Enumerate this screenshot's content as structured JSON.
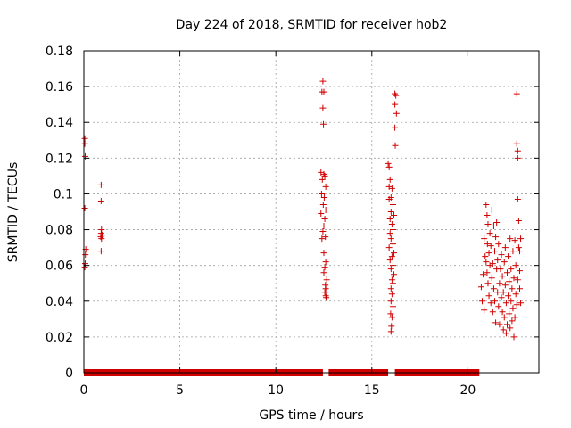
{
  "chart_data": {
    "type": "scatter",
    "title": "Day 224 of 2018, SRMTID for receiver hob2",
    "xlabel": "GPS time / hours",
    "ylabel": "SRMTID / TECUs",
    "xlim": [
      0,
      23.7
    ],
    "ylim": [
      0,
      0.18
    ],
    "xticks": [
      0,
      5,
      10,
      15,
      20
    ],
    "xtick_labels": [
      "0",
      "5",
      "10",
      "15",
      "20"
    ],
    "yticks": [
      0,
      0.02,
      0.04,
      0.06,
      0.08,
      0.1,
      0.12,
      0.14,
      0.16,
      0.18
    ],
    "ytick_labels": [
      "0",
      "0.02",
      "0.04",
      "0.06",
      "0.08",
      "0.1",
      "0.12",
      "0.14",
      "0.16",
      "0.18"
    ],
    "grid": true,
    "marker": "+",
    "marker_color": "#d10000",
    "zero_baseline_segments": [
      [
        0.0,
        12.45
      ],
      [
        12.75,
        15.85
      ],
      [
        16.2,
        20.6
      ]
    ],
    "series": [
      {
        "name": "SRMTID",
        "points": [
          [
            0.05,
            0.131
          ],
          [
            0.05,
            0.128
          ],
          [
            0.07,
            0.121
          ],
          [
            0.05,
            0.092
          ],
          [
            0.1,
            0.069
          ],
          [
            0.08,
            0.066
          ],
          [
            0.07,
            0.061
          ],
          [
            0.05,
            0.059
          ],
          [
            0.9,
            0.105
          ],
          [
            0.9,
            0.096
          ],
          [
            0.92,
            0.08
          ],
          [
            0.9,
            0.078
          ],
          [
            0.95,
            0.077
          ],
          [
            0.88,
            0.076
          ],
          [
            0.92,
            0.075
          ],
          [
            0.9,
            0.068
          ],
          [
            12.45,
            0.163
          ],
          [
            12.4,
            0.157
          ],
          [
            12.5,
            0.157
          ],
          [
            12.45,
            0.148
          ],
          [
            12.48,
            0.139
          ],
          [
            12.35,
            0.112
          ],
          [
            12.5,
            0.111
          ],
          [
            12.55,
            0.11
          ],
          [
            12.42,
            0.108
          ],
          [
            12.6,
            0.104
          ],
          [
            12.38,
            0.1
          ],
          [
            12.52,
            0.098
          ],
          [
            12.47,
            0.094
          ],
          [
            12.6,
            0.091
          ],
          [
            12.35,
            0.089
          ],
          [
            12.55,
            0.086
          ],
          [
            12.5,
            0.082
          ],
          [
            12.45,
            0.079
          ],
          [
            12.58,
            0.076
          ],
          [
            12.4,
            0.075
          ],
          [
            12.5,
            0.067
          ],
          [
            12.6,
            0.062
          ],
          [
            12.55,
            0.059
          ],
          [
            12.5,
            0.056
          ],
          [
            12.65,
            0.052
          ],
          [
            12.58,
            0.049
          ],
          [
            12.6,
            0.047
          ],
          [
            12.55,
            0.045
          ],
          [
            12.6,
            0.043
          ],
          [
            12.62,
            0.042
          ],
          [
            16.2,
            0.156
          ],
          [
            16.25,
            0.155
          ],
          [
            16.2,
            0.15
          ],
          [
            16.28,
            0.145
          ],
          [
            16.2,
            0.137
          ],
          [
            16.22,
            0.127
          ],
          [
            15.85,
            0.117
          ],
          [
            15.9,
            0.115
          ],
          [
            15.95,
            0.108
          ],
          [
            15.9,
            0.104
          ],
          [
            16.05,
            0.103
          ],
          [
            16.0,
            0.098
          ],
          [
            15.9,
            0.097
          ],
          [
            16.1,
            0.094
          ],
          [
            16.0,
            0.09
          ],
          [
            16.15,
            0.088
          ],
          [
            15.95,
            0.086
          ],
          [
            16.05,
            0.083
          ],
          [
            16.1,
            0.08
          ],
          [
            15.95,
            0.078
          ],
          [
            16.0,
            0.075
          ],
          [
            16.1,
            0.072
          ],
          [
            15.9,
            0.07
          ],
          [
            16.15,
            0.067
          ],
          [
            16.05,
            0.065
          ],
          [
            15.95,
            0.063
          ],
          [
            16.1,
            0.06
          ],
          [
            16.0,
            0.058
          ],
          [
            16.15,
            0.055
          ],
          [
            16.05,
            0.052
          ],
          [
            16.1,
            0.05
          ],
          [
            16.0,
            0.047
          ],
          [
            16.05,
            0.044
          ],
          [
            16.0,
            0.04
          ],
          [
            16.1,
            0.037
          ],
          [
            15.98,
            0.033
          ],
          [
            16.05,
            0.031
          ],
          [
            16.02,
            0.026
          ],
          [
            16.0,
            0.023
          ],
          [
            20.7,
            0.048
          ],
          [
            20.75,
            0.04
          ],
          [
            20.8,
            0.055
          ],
          [
            20.85,
            0.035
          ],
          [
            20.85,
            0.075
          ],
          [
            20.9,
            0.065
          ],
          [
            20.95,
            0.062
          ],
          [
            20.95,
            0.094
          ],
          [
            21.0,
            0.088
          ],
          [
            21.0,
            0.056
          ],
          [
            21.02,
            0.072
          ],
          [
            21.05,
            0.083
          ],
          [
            21.05,
            0.05
          ],
          [
            21.1,
            0.067
          ],
          [
            21.1,
            0.043
          ],
          [
            21.15,
            0.078
          ],
          [
            21.15,
            0.06
          ],
          [
            21.2,
            0.071
          ],
          [
            21.2,
            0.039
          ],
          [
            21.25,
            0.091
          ],
          [
            21.25,
            0.053
          ],
          [
            21.3,
            0.061
          ],
          [
            21.3,
            0.034
          ],
          [
            21.35,
            0.082
          ],
          [
            21.35,
            0.047
          ],
          [
            21.4,
            0.068
          ],
          [
            21.4,
            0.04
          ],
          [
            21.45,
            0.076
          ],
          [
            21.45,
            0.028
          ],
          [
            21.5,
            0.058
          ],
          [
            21.5,
            0.084
          ],
          [
            21.55,
            0.045
          ],
          [
            21.55,
            0.063
          ],
          [
            21.6,
            0.037
          ],
          [
            21.6,
            0.072
          ],
          [
            21.65,
            0.05
          ],
          [
            21.65,
            0.027
          ],
          [
            21.7,
            0.058
          ],
          [
            21.75,
            0.042
          ],
          [
            21.75,
            0.066
          ],
          [
            21.8,
            0.034
          ],
          [
            21.8,
            0.054
          ],
          [
            21.85,
            0.024
          ],
          [
            21.85,
            0.045
          ],
          [
            21.9,
            0.062
          ],
          [
            21.9,
            0.031
          ],
          [
            21.95,
            0.049
          ],
          [
            21.95,
            0.07
          ],
          [
            22.0,
            0.022
          ],
          [
            22.0,
            0.039
          ],
          [
            22.05,
            0.056
          ],
          [
            22.05,
            0.027
          ],
          [
            22.1,
            0.043
          ],
          [
            22.1,
            0.065
          ],
          [
            22.15,
            0.033
          ],
          [
            22.15,
            0.051
          ],
          [
            22.2,
            0.075
          ],
          [
            22.2,
            0.025
          ],
          [
            22.25,
            0.04
          ],
          [
            22.25,
            0.058
          ],
          [
            22.3,
            0.029
          ],
          [
            22.3,
            0.047
          ],
          [
            22.35,
            0.068
          ],
          [
            22.35,
            0.036
          ],
          [
            22.4,
            0.02
          ],
          [
            22.4,
            0.053
          ],
          [
            22.45,
            0.031
          ],
          [
            22.45,
            0.074
          ],
          [
            22.5,
            0.044
          ],
          [
            22.5,
            0.06
          ],
          [
            22.55,
            0.038
          ],
          [
            22.55,
            0.156
          ],
          [
            22.55,
            0.128
          ],
          [
            22.6,
            0.124
          ],
          [
            22.6,
            0.12
          ],
          [
            22.6,
            0.097
          ],
          [
            22.6,
            0.052
          ],
          [
            22.65,
            0.07
          ],
          [
            22.65,
            0.085
          ],
          [
            22.7,
            0.057
          ],
          [
            22.7,
            0.068
          ],
          [
            22.7,
            0.047
          ],
          [
            22.75,
            0.075
          ],
          [
            22.75,
            0.039
          ]
        ]
      }
    ]
  }
}
